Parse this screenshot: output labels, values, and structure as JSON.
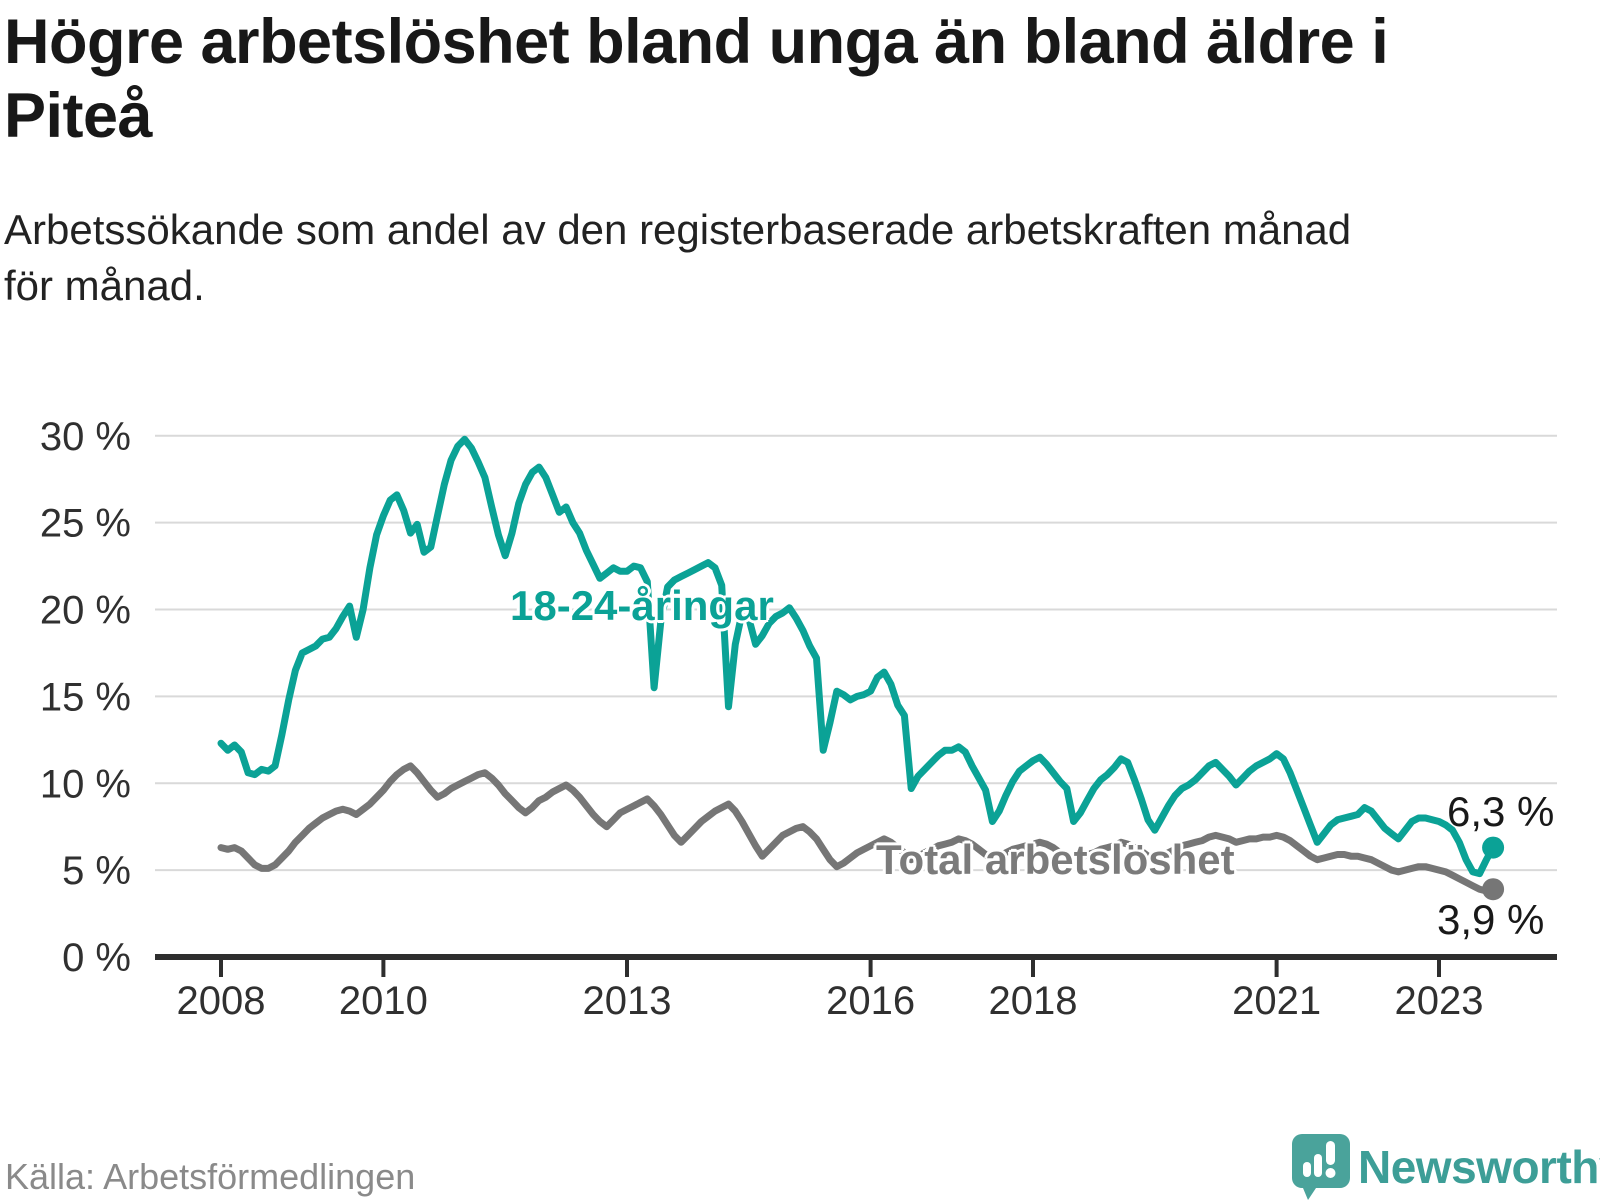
{
  "header": {
    "title": "Högre arbetslöshet bland unga än bland äldre i\nPiteå",
    "subtitle": "Arbetssökande som andel av den registerbaserade arbetskraften månad\nför månad."
  },
  "footer": {
    "source": "Källa: Arbetsförmedlingen",
    "brand": "Newsworthy"
  },
  "chart_data": {
    "type": "line",
    "title": "Högre arbetslöshet bland unga än bland äldre i Piteå",
    "ylabel": "",
    "xlabel": "",
    "unit": "%",
    "ylim": [
      0,
      30
    ],
    "yticks": [
      0,
      5,
      10,
      15,
      20,
      25,
      30
    ],
    "ytick_suffix": " %",
    "xticks": [
      2008,
      2010,
      2013,
      2016,
      2018,
      2021,
      2023
    ],
    "x_start": "2008-01",
    "x_end": "2023-09",
    "grid": "horizontal",
    "colors": {
      "youth": "#0ba296",
      "total": "#767676",
      "axis": "#2e2e2e",
      "gridline": "#d9d9d9"
    },
    "series": [
      {
        "name": "18-24-åringar",
        "color": "#0ba296",
        "end_label": "6,3 %",
        "end_value": 6.3,
        "values": [
          12.3,
          11.9,
          12.2,
          11.8,
          10.6,
          10.5,
          10.8,
          10.7,
          11.0,
          12.8,
          14.8,
          16.5,
          17.5,
          17.7,
          17.9,
          18.3,
          18.4,
          18.9,
          19.6,
          20.2,
          18.4,
          20.0,
          22.4,
          24.3,
          25.4,
          26.3,
          26.6,
          25.7,
          24.4,
          24.9,
          23.3,
          23.6,
          25.4,
          27.2,
          28.6,
          29.4,
          29.8,
          29.3,
          28.5,
          27.6,
          25.9,
          24.3,
          23.1,
          24.4,
          26.1,
          27.2,
          27.9,
          28.2,
          27.6,
          26.6,
          25.6,
          25.9,
          25.0,
          24.4,
          23.4,
          22.6,
          21.8,
          22.1,
          22.4,
          22.2,
          22.2,
          22.5,
          22.4,
          21.6,
          15.5,
          19.3,
          21.3,
          21.7,
          21.9,
          22.1,
          22.3,
          22.5,
          22.7,
          22.4,
          21.4,
          14.4,
          18.0,
          19.8,
          19.5,
          18.0,
          18.5,
          19.2,
          19.6,
          19.8,
          20.1,
          19.5,
          18.8,
          17.9,
          17.2,
          11.9,
          13.5,
          15.3,
          15.1,
          14.8,
          15.0,
          15.1,
          15.3,
          16.1,
          16.4,
          15.7,
          14.5,
          13.9,
          9.7,
          10.4,
          10.8,
          11.2,
          11.6,
          11.9,
          11.9,
          12.1,
          11.8,
          11.0,
          10.3,
          9.6,
          7.8,
          8.4,
          9.3,
          10.1,
          10.7,
          11.0,
          11.3,
          11.5,
          11.1,
          10.6,
          10.1,
          9.7,
          7.8,
          8.3,
          9.0,
          9.7,
          10.2,
          10.5,
          10.9,
          11.4,
          11.2,
          10.2,
          9.1,
          7.9,
          7.3,
          8.0,
          8.7,
          9.3,
          9.7,
          9.9,
          10.2,
          10.6,
          11.0,
          11.2,
          10.8,
          10.4,
          9.9,
          10.3,
          10.7,
          11.0,
          11.2,
          11.4,
          11.7,
          11.4,
          10.6,
          9.6,
          8.6,
          7.6,
          6.6,
          7.1,
          7.6,
          7.9,
          8.0,
          8.1,
          8.2,
          8.6,
          8.4,
          7.9,
          7.4,
          7.1,
          6.8,
          7.3,
          7.8,
          8.0,
          8.0,
          7.9,
          7.8,
          7.6,
          7.3,
          6.6,
          5.6,
          4.9,
          4.8,
          5.6,
          6.3
        ]
      },
      {
        "name": "Total arbetslöshet",
        "color": "#767676",
        "end_label": "3,9 %",
        "end_value": 3.9,
        "values": [
          6.3,
          6.2,
          6.3,
          6.1,
          5.7,
          5.3,
          5.1,
          5.1,
          5.3,
          5.7,
          6.1,
          6.6,
          7.0,
          7.4,
          7.7,
          8.0,
          8.2,
          8.4,
          8.5,
          8.4,
          8.2,
          8.5,
          8.8,
          9.2,
          9.6,
          10.1,
          10.5,
          10.8,
          11.0,
          10.6,
          10.1,
          9.6,
          9.2,
          9.4,
          9.7,
          9.9,
          10.1,
          10.3,
          10.5,
          10.6,
          10.3,
          9.9,
          9.4,
          9.0,
          8.6,
          8.3,
          8.6,
          9.0,
          9.2,
          9.5,
          9.7,
          9.9,
          9.6,
          9.2,
          8.7,
          8.2,
          7.8,
          7.5,
          7.9,
          8.3,
          8.5,
          8.7,
          8.9,
          9.1,
          8.7,
          8.2,
          7.6,
          7.0,
          6.6,
          7.0,
          7.4,
          7.8,
          8.1,
          8.4,
          8.6,
          8.8,
          8.4,
          7.8,
          7.1,
          6.4,
          5.8,
          6.2,
          6.6,
          7.0,
          7.2,
          7.4,
          7.5,
          7.2,
          6.8,
          6.2,
          5.6,
          5.2,
          5.4,
          5.7,
          6.0,
          6.2,
          6.4,
          6.6,
          6.8,
          6.6,
          6.3,
          6.0,
          5.6,
          5.8,
          6.0,
          6.2,
          6.4,
          6.5,
          6.6,
          6.8,
          6.7,
          6.5,
          6.2,
          5.9,
          5.6,
          5.8,
          6.0,
          6.2,
          6.3,
          6.4,
          6.5,
          6.6,
          6.5,
          6.3,
          6.0,
          5.8,
          5.5,
          5.7,
          5.9,
          6.0,
          6.2,
          6.3,
          6.4,
          6.6,
          6.5,
          6.3,
          6.1,
          5.8,
          5.6,
          5.8,
          6.0,
          6.2,
          6.4,
          6.5,
          6.6,
          6.7,
          6.9,
          7.0,
          6.9,
          6.8,
          6.6,
          6.7,
          6.8,
          6.8,
          6.9,
          6.9,
          7.0,
          6.9,
          6.7,
          6.4,
          6.1,
          5.8,
          5.6,
          5.7,
          5.8,
          5.9,
          5.9,
          5.8,
          5.8,
          5.7,
          5.6,
          5.4,
          5.2,
          5.0,
          4.9,
          5.0,
          5.1,
          5.2,
          5.2,
          5.1,
          5.0,
          4.9,
          4.7,
          4.5,
          4.3,
          4.1,
          3.9,
          3.8,
          3.9
        ]
      }
    ]
  }
}
